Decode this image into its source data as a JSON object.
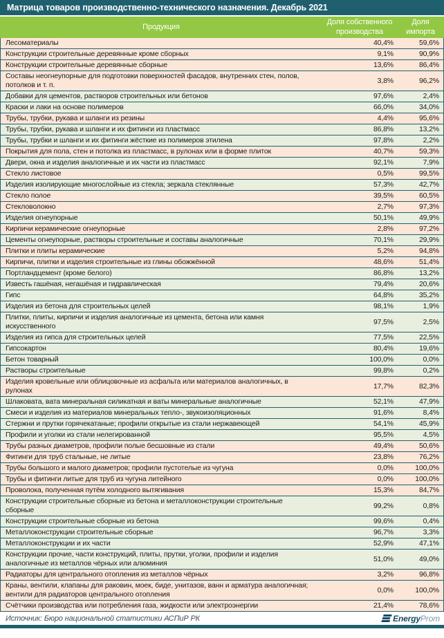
{
  "colors": {
    "header_bar": "#20606e",
    "column_header_bg": "#92c843",
    "row_import_dominant_bg": "#fce6d8",
    "row_domestic_dominant_bg": "#e9efdf",
    "divider": "#20606e",
    "header_text": "#ffffff",
    "logo_dark": "#164a63",
    "logo_light": "#7e95a7"
  },
  "footer": {
    "source": "Источник: Бюро национальной статистики АСПиР РК",
    "logo_bold": "Energy",
    "logo_light": "Prom"
  },
  "chart_data": {
    "type": "table",
    "title": "Матрица товаров производственно-технического назначения. Декабрь 2021",
    "columns": {
      "product": "Продукция",
      "own": "Доля собственного производства",
      "import": "Доля импорта"
    },
    "domestic_share_threshold_for_green_tint": 50,
    "rows": [
      {
        "product": "Лесоматериалы",
        "own": "40,4%",
        "import": "59,6%"
      },
      {
        "product": "Конструкции строительные деревянные кроме сборных",
        "own": "9,1%",
        "import": "90,9%"
      },
      {
        "product": "Конструкции строительные деревянные сборные",
        "own": "13,6%",
        "import": "86,4%"
      },
      {
        "product": "Составы неогнеупорные для подготовки поверхностей фасадов, внутренних стен, полов, потолков и т. п.",
        "own": "3,8%",
        "import": "96,2%"
      },
      {
        "product": "Добавки для цементов, растворов строительных или бетонов",
        "own": "97,6%",
        "import": "2,4%"
      },
      {
        "product": "Краски и лаки на основе полимеров",
        "own": "66,0%",
        "import": "34,0%"
      },
      {
        "product": "Трубы, трубки, рукава и шланги из резины",
        "own": "4,4%",
        "import": "95,6%"
      },
      {
        "product": "Трубы, трубки, рукава и шланги и их фитинги из пластмасс",
        "own": "86,8%",
        "import": "13,2%"
      },
      {
        "product": "Трубы, трубки и шланги и их фитинги жёсткие из полимеров этилена",
        "own": "97,8%",
        "import": "2,2%"
      },
      {
        "product": "Покрытия для пола, стен и потолка из пластмасс, в рулонах или в форме плиток",
        "own": "40,7%",
        "import": "59,3%"
      },
      {
        "product": "Двери, окна и изделия аналогичные и их части из пластмасс",
        "own": "92,1%",
        "import": "7,9%"
      },
      {
        "product": "Стекло листовое",
        "own": "0,5%",
        "import": "99,5%"
      },
      {
        "product": "Изделия изолирующие многослойные из стекла; зеркала стеклянные",
        "own": "57,3%",
        "import": "42,7%"
      },
      {
        "product": "Стекло полое",
        "own": "39,5%",
        "import": "60,5%"
      },
      {
        "product": "Стекловолокно",
        "own": "2,7%",
        "import": "97,3%"
      },
      {
        "product": "Изделия огнеупорные",
        "own": "50,1%",
        "import": "49,9%"
      },
      {
        "product": "Кирпичи керамические огнеупорные",
        "own": "2,8%",
        "import": "97,2%"
      },
      {
        "product": "Цементы огнеупорные, растворы строительные и составы аналогичные",
        "own": "70,1%",
        "import": "29,9%"
      },
      {
        "product": "Плитки и плиты керамические",
        "own": "5,2%",
        "import": "94,8%"
      },
      {
        "product": "Кирпичи, плитки и изделия строительные из глины обожжённой",
        "own": "48,6%",
        "import": "51,4%"
      },
      {
        "product": "Портландцемент (кроме белого)",
        "own": "86,8%",
        "import": "13,2%"
      },
      {
        "product": "Известь гашёная, негашёная и гидравлическая",
        "own": "79,4%",
        "import": "20,6%"
      },
      {
        "product": "Гипс",
        "own": "64,8%",
        "import": "35,2%"
      },
      {
        "product": "Изделия из бетона для строительных целей",
        "own": "98,1%",
        "import": "1,9%"
      },
      {
        "product": "Плитки, плиты, кирпичи и изделия аналогичные из цемента, бетона или камня искусственного",
        "own": "97,5%",
        "import": "2,5%"
      },
      {
        "product": "Изделия из гипса для строительных целей",
        "own": "77,5%",
        "import": "22,5%"
      },
      {
        "product": "Гипсокартон",
        "own": "80,4%",
        "import": "19,6%"
      },
      {
        "product": "Бетон товарный",
        "own": "100,0%",
        "import": "0,0%"
      },
      {
        "product": "Растворы строительные",
        "own": "99,8%",
        "import": "0,2%"
      },
      {
        "product": "Изделия кровельные или облицовочные из асфальта или материалов аналогичных, в рулонах",
        "own": "17,7%",
        "import": "82,3%"
      },
      {
        "product": "Шлаковата, вата минеральная силикатная и ваты минеральные аналогичные",
        "own": "52,1%",
        "import": "47,9%"
      },
      {
        "product": "Смеси и изделия из материалов минеральных тепло-, звукоизоляционных",
        "own": "91,6%",
        "import": "8,4%"
      },
      {
        "product": "Стержни и прутки горячекатаные; профили открытые из стали нержавеющей",
        "own": "54,1%",
        "import": "45,9%"
      },
      {
        "product": "Профили и уголки из стали нелегированной",
        "own": "95,5%",
        "import": "4,5%"
      },
      {
        "product": "Трубы разных диаметров, профили полые бесшовные из стали",
        "own": "49,4%",
        "import": "50,6%"
      },
      {
        "product": "Фитинги для труб стальные, не литые",
        "own": "23,8%",
        "import": "76,2%"
      },
      {
        "product": "Трубы большого и малого диаметров; профили пустотелые из чугуна",
        "own": "0,0%",
        "import": "100,0%"
      },
      {
        "product": "Трубы и фитинги литые для труб из чугуна литейного",
        "own": "0,0%",
        "import": "100,0%"
      },
      {
        "product": "Проволока, полученная путём холодного вытягивания",
        "own": "15,3%",
        "import": "84,7%"
      },
      {
        "product": "Конструкции строительные сборные из бетона и металлоконструкции строительные сборные",
        "own": "99,2%",
        "import": "0,8%"
      },
      {
        "product": "Конструкции строительные сборные из бетона",
        "own": "99,6%",
        "import": "0,4%"
      },
      {
        "product": "Металлоконструкции строительные сборные",
        "own": "96,7%",
        "import": "3,3%"
      },
      {
        "product": "Металлоконструкции и их части",
        "own": "52,9%",
        "import": "47,1%"
      },
      {
        "product": "Конструкции прочие, части конструкций, плиты, прутки, уголки, профили и изделия аналогичные из металлов чёрных или алюминия",
        "own": "51,0%",
        "import": "49,0%"
      },
      {
        "product": "Радиаторы для центрального отопления из металлов чёрных",
        "own": "3,2%",
        "import": "96,8%"
      },
      {
        "product": "Краны, вентили, клапаны для раковин, моек, биде, унитазов, ванн и арматура аналогичная; вентили для радиаторов центрального отопления",
        "own": "0,0%",
        "import": "100,0%"
      },
      {
        "product": "Счётчики производства или потребления газа, жидкости или электроэнергии",
        "own": "21,4%",
        "import": "78,6%"
      }
    ]
  }
}
